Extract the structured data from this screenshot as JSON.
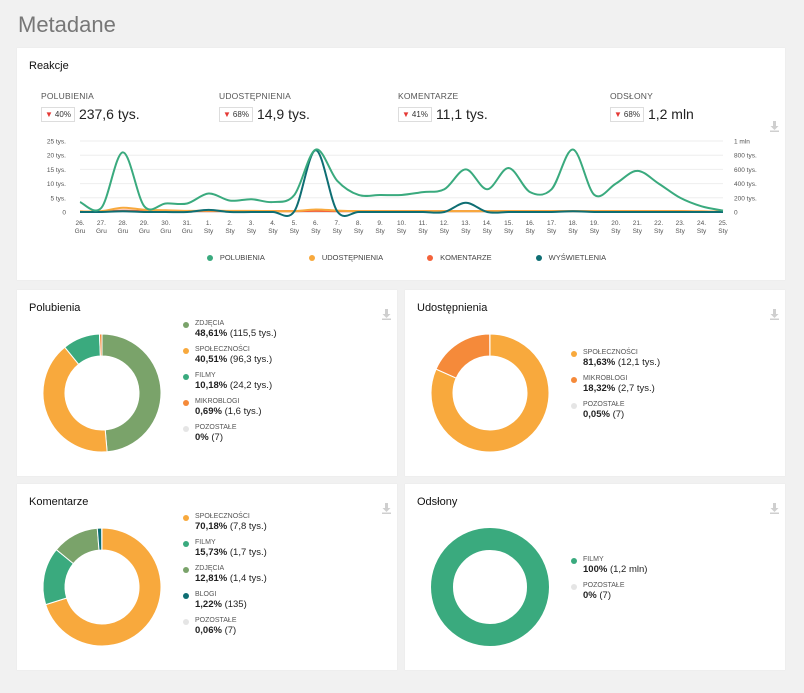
{
  "page": {
    "title": "Metadane"
  },
  "reactions": {
    "title": "Reakcje",
    "kpis": [
      {
        "label": "POLUBIENIA",
        "change": "40%",
        "value": "237,6 tys."
      },
      {
        "label": "UDOSTĘPNIENIA",
        "change": "68%",
        "value": "14,9 tys."
      },
      {
        "label": "KOMENTARZE",
        "change": "41%",
        "value": "11,1 tys."
      },
      {
        "label": "ODSŁONY",
        "change": "68%",
        "value": "1,2 mln"
      }
    ],
    "legend": [
      "POLUBIENIA",
      "UDOSTĘPNIENIA",
      "KOMENTARZE",
      "WYŚWIETLENIA"
    ]
  },
  "chart_data": {
    "type": "line",
    "x": [
      "26. Gru",
      "27. Gru",
      "28. Gru",
      "29. Gru",
      "30. Gru",
      "31. Gru",
      "1. Sty",
      "2. Sty",
      "3. Sty",
      "4. Sty",
      "5. Sty",
      "6. Sty",
      "7. Sty",
      "8. Sty",
      "9. Sty",
      "10. Sty",
      "11. Sty",
      "12. Sty",
      "13. Sty",
      "14. Sty",
      "15. Sty",
      "16. Sty",
      "17. Sty",
      "18. Sty",
      "19. Sty",
      "20. Sty",
      "21. Sty",
      "22. Sty",
      "23. Sty",
      "24. Sty",
      "25. Sty"
    ],
    "y_left_ticks": [
      "0",
      "5 tys.",
      "10 tys.",
      "15 tys.",
      "20 tys.",
      "25 tys."
    ],
    "y_right_ticks": [
      "0",
      "200 tys.",
      "400 tys.",
      "600 tys.",
      "800 tys.",
      "1 mln"
    ],
    "ylim_left": [
      0,
      25000
    ],
    "ylim_right": [
      0,
      1000000
    ],
    "series": [
      {
        "name": "POLUBIENIA",
        "color": "#3aaa7e",
        "axis": "left",
        "values": [
          3500,
          1500,
          21000,
          2000,
          3000,
          3000,
          6500,
          4000,
          4500,
          3500,
          6000,
          22000,
          11000,
          6000,
          6000,
          6000,
          7000,
          8000,
          15000,
          8000,
          15500,
          7000,
          8000,
          22000,
          6000,
          10000,
          14500,
          10000,
          5000,
          2000,
          500
        ]
      },
      {
        "name": "UDOSTĘPNIENIA",
        "color": "#f8a93d",
        "axis": "left",
        "values": [
          200,
          300,
          1500,
          800,
          600,
          400,
          500,
          400,
          400,
          300,
          300,
          900,
          500,
          300,
          300,
          300,
          300,
          300,
          300,
          300,
          300,
          300,
          300,
          300,
          300,
          300,
          300,
          300,
          300,
          200,
          100
        ]
      },
      {
        "name": "KOMENTARZE",
        "color": "#f4623a",
        "axis": "left",
        "values": [
          200,
          200,
          500,
          300,
          300,
          300,
          300,
          300,
          300,
          300,
          300,
          400,
          300,
          300,
          300,
          300,
          300,
          300,
          300,
          300,
          300,
          300,
          300,
          300,
          300,
          300,
          300,
          300,
          300,
          200,
          100
        ]
      },
      {
        "name": "WYŚWIETLENIA",
        "color": "#0e6e73",
        "axis": "right",
        "values": [
          0,
          0,
          10000,
          0,
          0,
          0,
          30000,
          0,
          0,
          0,
          10000,
          870000,
          10000,
          0,
          0,
          0,
          0,
          0,
          130000,
          0,
          0,
          0,
          0,
          10000,
          0,
          0,
          0,
          0,
          0,
          0,
          0
        ]
      }
    ]
  },
  "donuts": [
    {
      "title": "Polubienia",
      "items": [
        {
          "label": "ZDJĘCIA",
          "pct": "48,61%",
          "detail": "(115,5 tys.)",
          "color": "#7aa36a",
          "value": 48.61
        },
        {
          "label": "SPOŁECZNOŚCI",
          "pct": "40,51%",
          "detail": "(96,3 tys.)",
          "color": "#f8a93d",
          "value": 40.51
        },
        {
          "label": "FILMY",
          "pct": "10,18%",
          "detail": "(24,2 tys.)",
          "color": "#3aaa7e",
          "value": 10.18
        },
        {
          "label": "MIKROBLOGI",
          "pct": "0,69%",
          "detail": "(1,6 tys.)",
          "color": "#f58a3a",
          "value": 0.69
        },
        {
          "label": "POZOSTAŁE",
          "pct": "0%",
          "detail": "(7)",
          "color": "#e5e5e5",
          "value": 0
        }
      ]
    },
    {
      "title": "Udostępnienia",
      "items": [
        {
          "label": "SPOŁECZNOŚCI",
          "pct": "81,63%",
          "detail": "(12,1 tys.)",
          "color": "#f8a93d",
          "value": 81.63
        },
        {
          "label": "MIKROBLOGI",
          "pct": "18,32%",
          "detail": "(2,7 tys.)",
          "color": "#f58a3a",
          "value": 18.32
        },
        {
          "label": "POZOSTAŁE",
          "pct": "0,05%",
          "detail": "(7)",
          "color": "#e5e5e5",
          "value": 0.05
        }
      ]
    },
    {
      "title": "Komentarze",
      "items": [
        {
          "label": "SPOŁECZNOŚCI",
          "pct": "70,18%",
          "detail": "(7,8 tys.)",
          "color": "#f8a93d",
          "value": 70.18
        },
        {
          "label": "FILMY",
          "pct": "15,73%",
          "detail": "(1,7 tys.)",
          "color": "#3aaa7e",
          "value": 15.73
        },
        {
          "label": "ZDJĘCIA",
          "pct": "12,81%",
          "detail": "(1,4 tys.)",
          "color": "#7aa36a",
          "value": 12.81
        },
        {
          "label": "BLOGI",
          "pct": "1,22%",
          "detail": "(135)",
          "color": "#0e6e73",
          "value": 1.22
        },
        {
          "label": "POZOSTAŁE",
          "pct": "0,06%",
          "detail": "(7)",
          "color": "#e5e5e5",
          "value": 0.06
        }
      ]
    },
    {
      "title": "Odsłony",
      "items": [
        {
          "label": "FILMY",
          "pct": "100%",
          "detail": "(1,2 mln)",
          "color": "#3aaa7e",
          "value": 100
        },
        {
          "label": "POZOSTAŁE",
          "pct": "0%",
          "detail": "(7)",
          "color": "#e5e5e5",
          "value": 0
        }
      ]
    }
  ]
}
